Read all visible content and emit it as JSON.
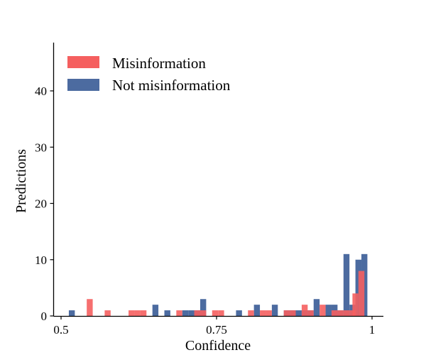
{
  "chart_data": {
    "type": "bar",
    "subtype": "overlapping-histogram",
    "title": "",
    "xlabel": "Confidence",
    "ylabel": "Predictions",
    "xlim": [
      0.49,
      1.015
    ],
    "ylim": [
      0,
      48
    ],
    "xticks": [
      {
        "value": 0.5,
        "label": "0.5"
      },
      {
        "value": 0.75,
        "label": "0.75"
      },
      {
        "value": 1.0,
        "label": "1"
      }
    ],
    "yticks": [
      {
        "value": 0,
        "label": "0"
      },
      {
        "value": 10,
        "label": "10"
      },
      {
        "value": 20,
        "label": "20"
      },
      {
        "value": 30,
        "label": "30"
      },
      {
        "value": 40,
        "label": "40"
      }
    ],
    "bin_width": 0.0096,
    "grid": false,
    "legend_position": "top-left",
    "series": [
      {
        "name": "Not misinformation",
        "color": "#4c6ba0",
        "bins": [
          {
            "x": 0.5173,
            "count": 1
          },
          {
            "x": 0.6517,
            "count": 2
          },
          {
            "x": 0.6709,
            "count": 1
          },
          {
            "x": 0.6997,
            "count": 1
          },
          {
            "x": 0.7093,
            "count": 1
          },
          {
            "x": 0.7189,
            "count": 1
          },
          {
            "x": 0.7285,
            "count": 3
          },
          {
            "x": 0.7861,
            "count": 1
          },
          {
            "x": 0.8149,
            "count": 2
          },
          {
            "x": 0.8437,
            "count": 2
          },
          {
            "x": 0.8629,
            "count": 1
          },
          {
            "x": 0.8725,
            "count": 1
          },
          {
            "x": 0.8821,
            "count": 1
          },
          {
            "x": 0.8917,
            "count": 1
          },
          {
            "x": 0.9013,
            "count": 1
          },
          {
            "x": 0.9109,
            "count": 3
          },
          {
            "x": 0.9301,
            "count": 2
          },
          {
            "x": 0.9397,
            "count": 2
          },
          {
            "x": 0.9493,
            "count": 1
          },
          {
            "x": 0.9589,
            "count": 11
          },
          {
            "x": 0.9685,
            "count": 2
          },
          {
            "x": 0.9781,
            "count": 10
          },
          {
            "x": 0.9877,
            "count": 11
          }
        ]
      },
      {
        "name": "Misinformation",
        "color": "#f55f5f",
        "bins": [
          {
            "x": 0.5461,
            "count": 3
          },
          {
            "x": 0.5749,
            "count": 1
          },
          {
            "x": 0.6133,
            "count": 1
          },
          {
            "x": 0.6229,
            "count": 1
          },
          {
            "x": 0.6325,
            "count": 1
          },
          {
            "x": 0.6901,
            "count": 1
          },
          {
            "x": 0.7189,
            "count": 1
          },
          {
            "x": 0.7285,
            "count": 1
          },
          {
            "x": 0.7477,
            "count": 1
          },
          {
            "x": 0.7573,
            "count": 1
          },
          {
            "x": 0.8053,
            "count": 1
          },
          {
            "x": 0.8245,
            "count": 1
          },
          {
            "x": 0.8341,
            "count": 1
          },
          {
            "x": 0.8629,
            "count": 1
          },
          {
            "x": 0.8725,
            "count": 1
          },
          {
            "x": 0.8917,
            "count": 2
          },
          {
            "x": 0.9013,
            "count": 1
          },
          {
            "x": 0.9205,
            "count": 2
          },
          {
            "x": 0.9397,
            "count": 1
          },
          {
            "x": 0.9493,
            "count": 1
          },
          {
            "x": 0.9589,
            "count": 1
          },
          {
            "x": 0.9685,
            "count": 1
          },
          {
            "x": 0.9733,
            "count": 4
          },
          {
            "x": 0.9829,
            "count": 8
          }
        ]
      }
    ],
    "legend": [
      {
        "name": "Misinformation",
        "color": "#f55f5f"
      },
      {
        "name": "Not misinformation",
        "color": "#4c6ba0"
      }
    ]
  }
}
